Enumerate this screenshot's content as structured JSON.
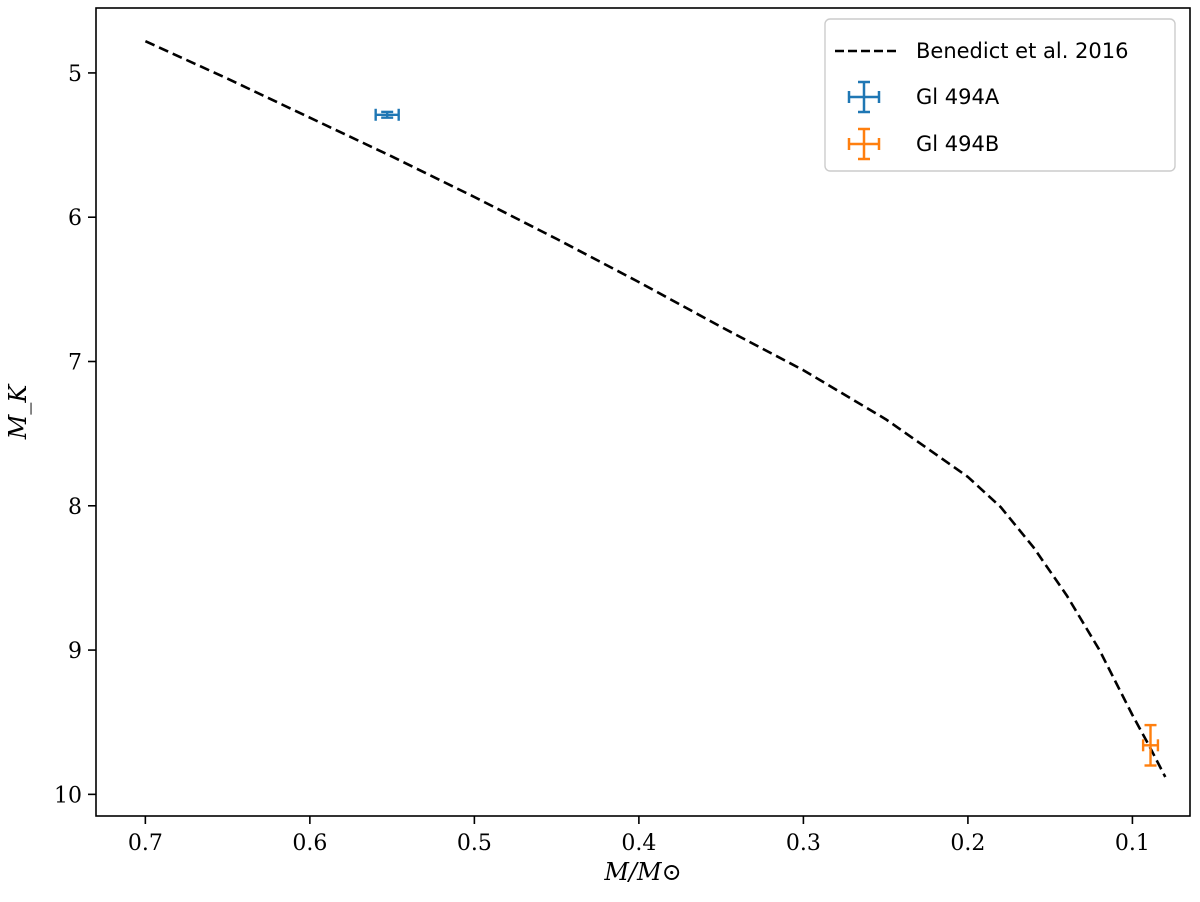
{
  "chart_data": {
    "type": "scatter",
    "title": "",
    "xlabel": "M/M⊙",
    "ylabel": "M_K",
    "xlim": [
      0.73,
      0.065
    ],
    "ylim": [
      10.15,
      4.55
    ],
    "x_ticks": [
      0.7,
      0.6,
      0.5,
      0.4,
      0.3,
      0.2,
      0.1
    ],
    "x_tick_labels": [
      "0.7",
      "0.6",
      "0.5",
      "0.4",
      "0.3",
      "0.2",
      "0.1"
    ],
    "y_ticks": [
      5,
      6,
      7,
      8,
      9,
      10
    ],
    "y_tick_labels": [
      "5",
      "6",
      "7",
      "8",
      "9",
      "10"
    ],
    "grid": false,
    "legend_position": "top-right",
    "series": [
      {
        "name": "Benedict et al. 2016",
        "kind": "line",
        "style": "dashed",
        "color": "#000000",
        "x": [
          0.7,
          0.65,
          0.6,
          0.55,
          0.5,
          0.45,
          0.4,
          0.35,
          0.3,
          0.25,
          0.2,
          0.18,
          0.16,
          0.14,
          0.12,
          0.1,
          0.09,
          0.08
        ],
        "y": [
          4.78,
          5.04,
          5.31,
          5.58,
          5.86,
          6.15,
          6.45,
          6.76,
          7.06,
          7.4,
          7.8,
          8.01,
          8.29,
          8.62,
          9.0,
          9.45,
          9.66,
          9.88
        ]
      },
      {
        "name": "Gl 494A",
        "kind": "errorbar",
        "color": "#1f77b4",
        "points": [
          {
            "x": 0.553,
            "y": 5.29,
            "xerr": 0.007,
            "yerr": 0.02
          }
        ]
      },
      {
        "name": "Gl 494B",
        "kind": "errorbar",
        "color": "#ff7f0e",
        "points": [
          {
            "x": 0.089,
            "y": 9.66,
            "xerr": 0.0045,
            "yerr": 0.14
          }
        ]
      }
    ]
  }
}
